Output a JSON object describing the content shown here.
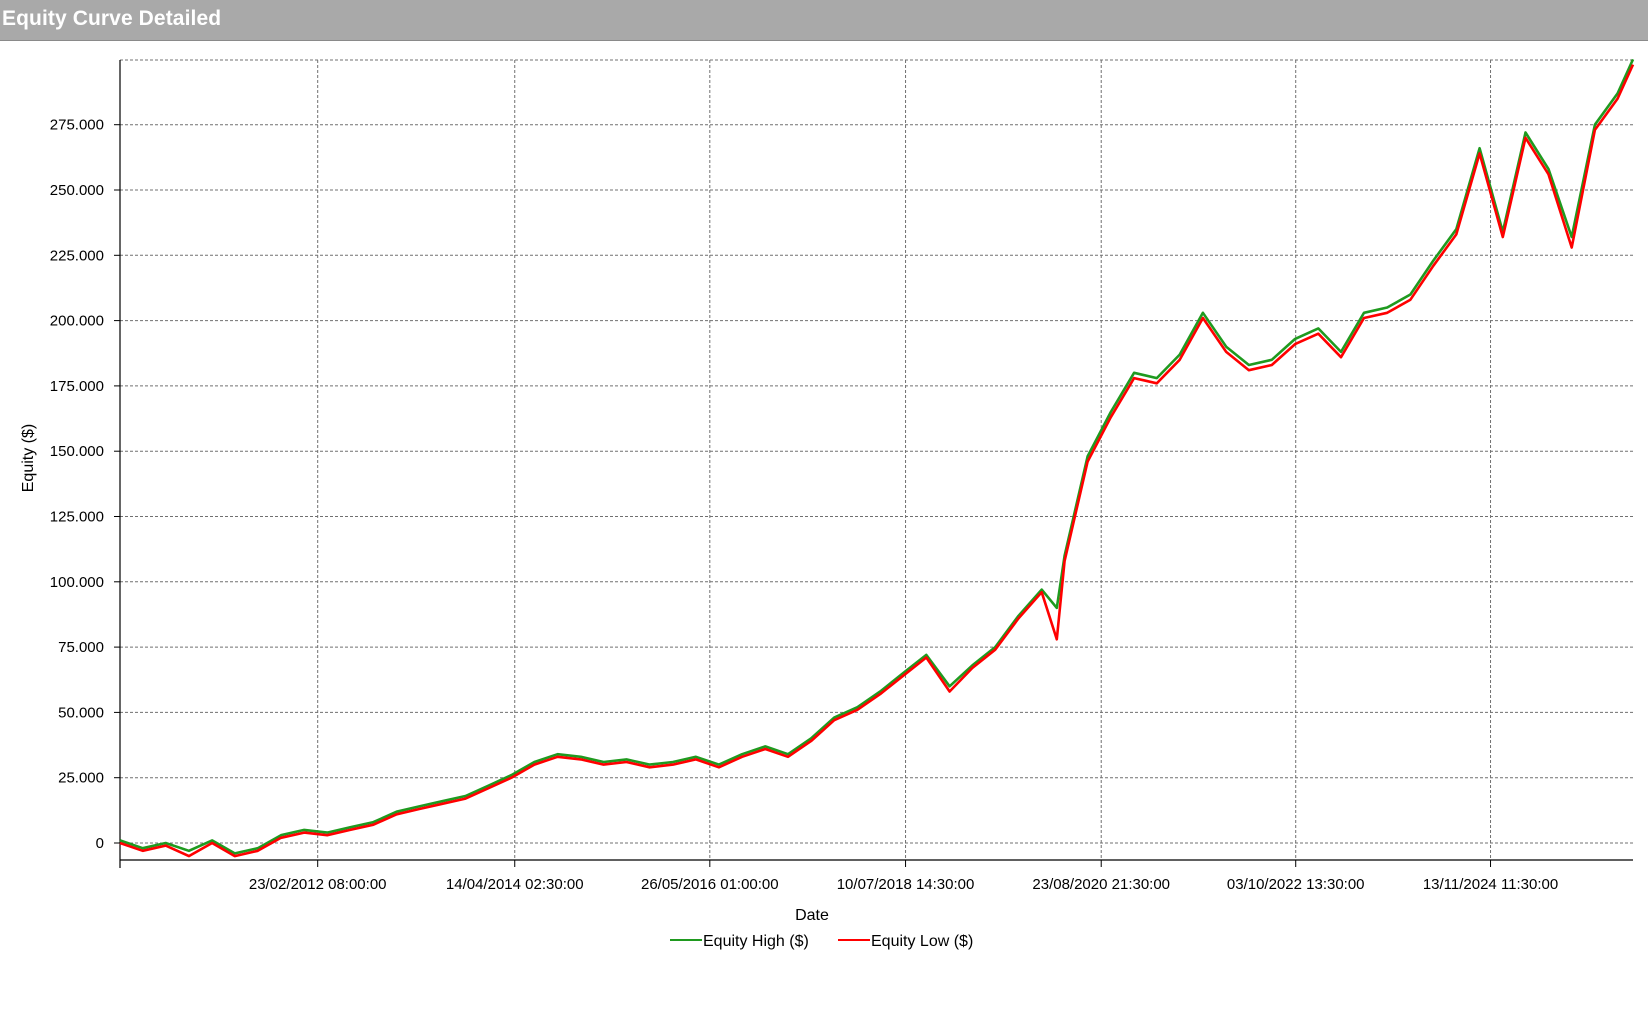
{
  "window": {
    "title": "Equity Curve Detailed"
  },
  "colors": {
    "equity_high": "#1f9a1f",
    "equity_low": "#ff0000",
    "grid": "#707070",
    "titlebar": "#a9a9a9"
  },
  "chart_data": {
    "type": "line",
    "title": "",
    "xlabel": "Date",
    "ylabel": "Equity ($)",
    "ylim": [
      -5000,
      300000
    ],
    "y_ticks": [
      0,
      25000,
      50000,
      75000,
      100000,
      125000,
      150000,
      175000,
      200000,
      225000,
      250000,
      275000
    ],
    "y_tick_labels": [
      "0",
      "25.000",
      "50.000",
      "75.000",
      "100.000",
      "125.000",
      "150.000",
      "175.000",
      "200.000",
      "225.000",
      "250.000",
      "275.000"
    ],
    "x_range": [
      "2010-01-01",
      "2026-06-01"
    ],
    "x_ticks": [
      "2012-02-23T08:00",
      "2014-04-14T02:30",
      "2016-05-26T01:00",
      "2018-07-10T14:30",
      "2020-08-23T21:30",
      "2022-10-03T13:30",
      "2024-11-13T11:30"
    ],
    "x_tick_labels": [
      "23/02/2012 08:00:00",
      "14/04/2014 02:30:00",
      "26/05/2016 01:00:00",
      "10/07/2018 14:30:00",
      "23/08/2020 21:30:00",
      "03/10/2022 13:30:00",
      "13/11/2024 11:30:00"
    ],
    "grid": true,
    "legend_position": "bottom-center",
    "series": [
      {
        "name": "Equity High ($)",
        "x": [
          "2010-01-01",
          "2010-04-01",
          "2010-07-01",
          "2010-10-01",
          "2011-01-01",
          "2011-04-01",
          "2011-07-01",
          "2011-10-01",
          "2012-01-01",
          "2012-04-01",
          "2012-07-01",
          "2012-10-01",
          "2013-01-01",
          "2013-04-01",
          "2013-07-01",
          "2013-10-01",
          "2014-01-01",
          "2014-04-01",
          "2014-07-01",
          "2014-10-01",
          "2015-01-01",
          "2015-04-01",
          "2015-07-01",
          "2015-10-01",
          "2016-01-01",
          "2016-04-01",
          "2016-07-01",
          "2016-10-01",
          "2017-01-01",
          "2017-04-01",
          "2017-07-01",
          "2017-10-01",
          "2018-01-01",
          "2018-04-01",
          "2018-07-01",
          "2018-10-01",
          "2019-01-01",
          "2019-04-01",
          "2019-07-01",
          "2019-10-01",
          "2020-01-01",
          "2020-03-01",
          "2020-04-01",
          "2020-07-01",
          "2020-10-01",
          "2021-01-01",
          "2021-04-01",
          "2021-07-01",
          "2021-10-01",
          "2022-01-01",
          "2022-04-01",
          "2022-07-01",
          "2022-10-01",
          "2023-01-01",
          "2023-04-01",
          "2023-07-01",
          "2023-10-01",
          "2024-01-01",
          "2024-04-01",
          "2024-07-01",
          "2024-10-01",
          "2025-01-01",
          "2025-04-01",
          "2025-07-01",
          "2025-10-01",
          "2026-01-01",
          "2026-04-01",
          "2026-06-01"
        ],
        "y": [
          1000,
          -2000,
          0,
          -3000,
          1000,
          -4000,
          -2000,
          3000,
          5000,
          4000,
          6000,
          8000,
          12000,
          14000,
          16000,
          18000,
          22000,
          26000,
          31000,
          34000,
          33000,
          31000,
          32000,
          30000,
          31000,
          33000,
          30000,
          34000,
          37000,
          34000,
          40000,
          48000,
          52000,
          58000,
          65000,
          72000,
          60000,
          68000,
          75000,
          87000,
          97000,
          90000,
          110000,
          148000,
          165000,
          180000,
          178000,
          187000,
          203000,
          190000,
          183000,
          185000,
          193000,
          197000,
          188000,
          203000,
          205000,
          210000,
          223000,
          235000,
          266000,
          234000,
          272000,
          258000,
          232000,
          275000,
          287000,
          300000
        ]
      },
      {
        "name": "Equity Low ($)",
        "x": [
          "2010-01-01",
          "2010-04-01",
          "2010-07-01",
          "2010-10-01",
          "2011-01-01",
          "2011-04-01",
          "2011-07-01",
          "2011-10-01",
          "2012-01-01",
          "2012-04-01",
          "2012-07-01",
          "2012-10-01",
          "2013-01-01",
          "2013-04-01",
          "2013-07-01",
          "2013-10-01",
          "2014-01-01",
          "2014-04-01",
          "2014-07-01",
          "2014-10-01",
          "2015-01-01",
          "2015-04-01",
          "2015-07-01",
          "2015-10-01",
          "2016-01-01",
          "2016-04-01",
          "2016-07-01",
          "2016-10-01",
          "2017-01-01",
          "2017-04-01",
          "2017-07-01",
          "2017-10-01",
          "2018-01-01",
          "2018-04-01",
          "2018-07-01",
          "2018-10-01",
          "2019-01-01",
          "2019-04-01",
          "2019-07-01",
          "2019-10-01",
          "2020-01-01",
          "2020-03-01",
          "2020-04-01",
          "2020-07-01",
          "2020-10-01",
          "2021-01-01",
          "2021-04-01",
          "2021-07-01",
          "2021-10-01",
          "2022-01-01",
          "2022-04-01",
          "2022-07-01",
          "2022-10-01",
          "2023-01-01",
          "2023-04-01",
          "2023-07-01",
          "2023-10-01",
          "2024-01-01",
          "2024-04-01",
          "2024-07-01",
          "2024-10-01",
          "2025-01-01",
          "2025-04-01",
          "2025-07-01",
          "2025-10-01",
          "2026-01-01",
          "2026-04-01",
          "2026-06-01"
        ],
        "y": [
          0,
          -3000,
          -1000,
          -5000,
          0,
          -5000,
          -3000,
          2000,
          4000,
          3000,
          5000,
          7000,
          11000,
          13000,
          15000,
          17000,
          21000,
          25000,
          30000,
          33000,
          32000,
          30000,
          31000,
          29000,
          30000,
          32000,
          29000,
          33000,
          36000,
          33000,
          39000,
          47000,
          51000,
          57000,
          64000,
          71000,
          58000,
          67000,
          74000,
          86000,
          96000,
          78000,
          108000,
          146000,
          163000,
          178000,
          176000,
          185000,
          201000,
          188000,
          181000,
          183000,
          191000,
          195000,
          186000,
          201000,
          203000,
          208000,
          221000,
          233000,
          264000,
          232000,
          270000,
          256000,
          228000,
          273000,
          285000,
          298000
        ]
      }
    ]
  }
}
